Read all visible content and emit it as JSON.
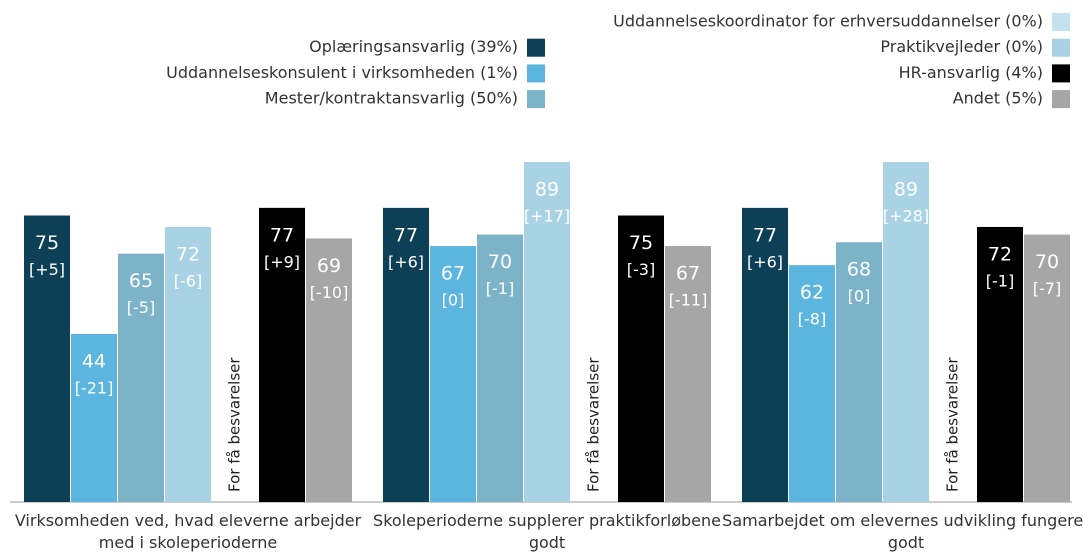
{
  "chart_data": {
    "type": "bar",
    "categories": [
      "Virksomheden ved, hvad eleverne arbejder med i skoleperioderne",
      "Skoleperioderne supplerer praktikforløbene godt",
      "Samarbejdet om elevernes udvikling fungerer godt"
    ],
    "ylim": [
      0,
      100
    ],
    "series": [
      {
        "name": "Oplæringsansvarlig (39%)",
        "color": "#0d3f57",
        "values": [
          75,
          77,
          77
        ],
        "change_labels": [
          "[+5]",
          "[+6]",
          "[+6]"
        ]
      },
      {
        "name": "Uddannelseskonsulent i virksomheden (1%)",
        "color": "#5bb5de",
        "values": [
          44,
          67,
          62
        ],
        "change_labels": [
          "[-21]",
          "[0]",
          "[-8]"
        ]
      },
      {
        "name": "Mester/kontraktansvarlig (50%)",
        "color": "#7db3c9",
        "values": [
          65,
          70,
          68
        ],
        "change_labels": [
          "[-5]",
          "[-1]",
          "[0]"
        ]
      },
      {
        "name": "Praktikvejleder (0%)",
        "color": "#a9d3e4",
        "values": [
          72,
          89,
          89
        ],
        "change_labels": [
          "[-6]",
          "[+17]",
          "[+28]"
        ]
      },
      {
        "name": "Uddannelseskoordinator for erhversuddannelser (0%)",
        "color": "#c4e2ee",
        "values": [
          null,
          null,
          null
        ],
        "value_labels": [
          "For få besvarelser",
          "For få besvarelser",
          "For få besvarelser"
        ]
      },
      {
        "name": "HR-ansvarlig (4%)",
        "color": "#000000",
        "values": [
          77,
          75,
          72
        ],
        "change_labels": [
          "[+9]",
          "[-3]",
          "[-1]"
        ]
      },
      {
        "name": "Andet (5%)",
        "color": "#a6a6a6",
        "values": [
          69,
          67,
          70
        ],
        "change_labels": [
          "[-10]",
          "[-11]",
          "[-7]"
        ]
      }
    ]
  }
}
